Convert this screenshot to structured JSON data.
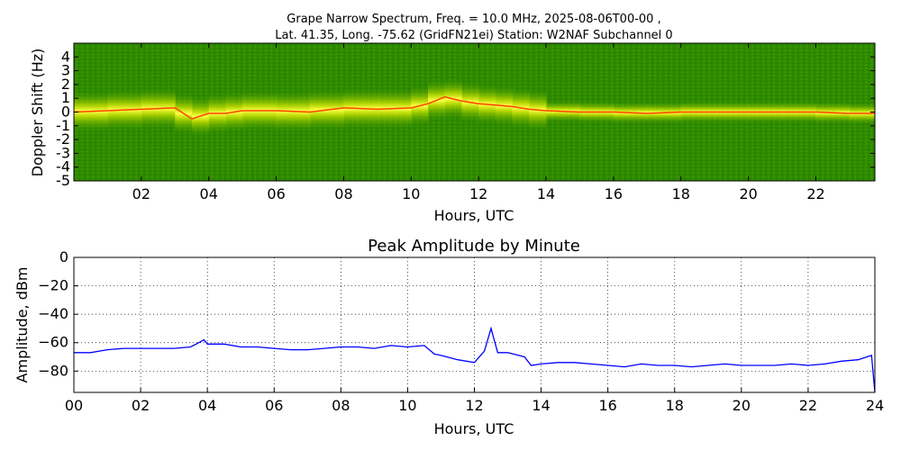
{
  "chart_data": [
    {
      "type": "heatmap",
      "title_line1": "Grape Narrow Spectrum, Freq. = 10.0 MHz, 2025-08-06T00-00 ,",
      "title_line2": "Lat.  41.35, Long. -75.62 (GridFN21ei) Station: W2NAF Subchannel 0",
      "xlabel": "Hours, UTC",
      "ylabel": "Doppler Shift (Hz)",
      "xlim": [
        0,
        23.75
      ],
      "ylim": [
        -5,
        5
      ],
      "xticks": [
        "02",
        "04",
        "06",
        "08",
        "10",
        "12",
        "14",
        "16",
        "18",
        "20",
        "22"
      ],
      "xtick_values": [
        2,
        4,
        6,
        8,
        10,
        12,
        14,
        16,
        18,
        20,
        22
      ],
      "yticks": [
        "4",
        "3",
        "2",
        "1",
        "0",
        "-1",
        "-2",
        "-3",
        "-4",
        "-5"
      ],
      "ytick_values": [
        4,
        3,
        2,
        1,
        0,
        -1,
        -2,
        -3,
        -4,
        -5
      ],
      "colors": {
        "background": "#2e8a00",
        "mid": "#a8d400",
        "high": "#ffff33",
        "peak": "#ff3300"
      },
      "doppler_trace": {
        "x": [
          0,
          1,
          2,
          3,
          3.5,
          4,
          4.5,
          5,
          6,
          7,
          8,
          9,
          10,
          10.5,
          11,
          11.5,
          12,
          12.5,
          13,
          13.5,
          14,
          15,
          16,
          17,
          18,
          19,
          20,
          21,
          22,
          23,
          23.75
        ],
        "y": [
          0.0,
          0.1,
          0.2,
          0.3,
          -0.5,
          -0.1,
          -0.1,
          0.1,
          0.1,
          0.0,
          0.3,
          0.2,
          0.3,
          0.6,
          1.1,
          0.8,
          0.6,
          0.5,
          0.4,
          0.2,
          0.1,
          0.0,
          0.0,
          -0.1,
          0.0,
          0.0,
          0.0,
          0.0,
          0.0,
          -0.1,
          -0.1
        ]
      }
    },
    {
      "type": "line",
      "title": "Peak Amplitude by Minute",
      "xlabel": "Hours, UTC",
      "ylabel": "Amplitude, dBm",
      "xlim": [
        0,
        24
      ],
      "ylim": [
        -95,
        0
      ],
      "grid": true,
      "xticks": [
        "00",
        "02",
        "04",
        "06",
        "08",
        "10",
        "12",
        "14",
        "16",
        "18",
        "20",
        "22",
        "24"
      ],
      "xtick_values": [
        0,
        2,
        4,
        6,
        8,
        10,
        12,
        14,
        16,
        18,
        20,
        22,
        24
      ],
      "yticks": [
        "0",
        "−20",
        "−40",
        "−60",
        "−80"
      ],
      "ytick_values": [
        0,
        -20,
        -40,
        -60,
        -80
      ],
      "line_color": "#0000ff",
      "series": [
        {
          "x": [
            0,
            0.5,
            1,
            1.5,
            2,
            2.5,
            3,
            3.5,
            3.9,
            4,
            4.5,
            5,
            5.5,
            6,
            6.5,
            7,
            7.5,
            8,
            8.5,
            9,
            9.5,
            10,
            10.5,
            10.8,
            11,
            11.5,
            12,
            12.3,
            12.5,
            12.7,
            13,
            13.5,
            13.7,
            14,
            14.5,
            15,
            15.5,
            16,
            16.5,
            17,
            17.5,
            18,
            18.5,
            19,
            19.5,
            20,
            20.5,
            21,
            21.5,
            22,
            22.5,
            23,
            23.5,
            23.9,
            24
          ],
          "y": [
            -67,
            -67,
            -65,
            -64,
            -64,
            -64,
            -64,
            -63,
            -58,
            -61,
            -61,
            -63,
            -63,
            -64,
            -65,
            -65,
            -64,
            -63,
            -63,
            -64,
            -62,
            -63,
            -62,
            -68,
            -69,
            -72,
            -74,
            -66,
            -50,
            -67,
            -67,
            -70,
            -76,
            -75,
            -74,
            -74,
            -75,
            -76,
            -77,
            -75,
            -76,
            -76,
            -77,
            -76,
            -75,
            -76,
            -76,
            -76,
            -75,
            -76,
            -75,
            -73,
            -72,
            -69,
            -95
          ]
        }
      ]
    }
  ]
}
